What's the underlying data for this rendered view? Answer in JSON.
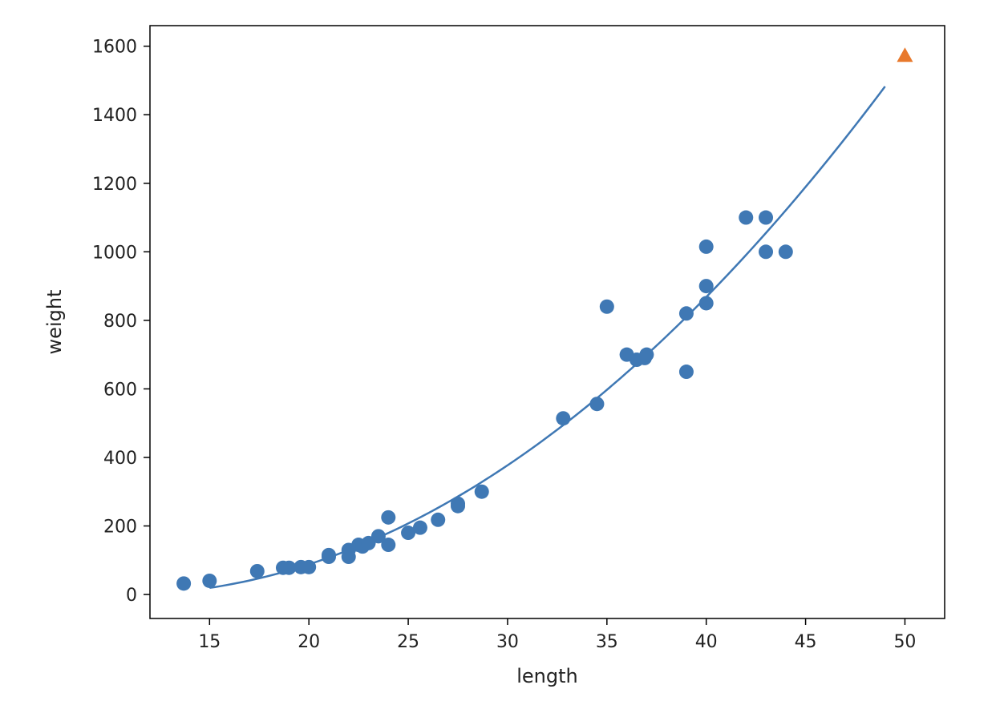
{
  "chart_data": {
    "type": "scatter",
    "xlabel": "length",
    "ylabel": "weight",
    "xlim": [
      12,
      52
    ],
    "ylim": [
      -70,
      1660
    ],
    "xticks": [
      15,
      20,
      25,
      30,
      35,
      40,
      45,
      50
    ],
    "yticks": [
      0,
      200,
      400,
      600,
      800,
      1000,
      1200,
      1400,
      1600
    ],
    "grid": false,
    "colors": {
      "data": "#3f78b4",
      "new_point": "#e8792c",
      "curve": "#3f78b4",
      "axes": "#000000"
    },
    "series": [
      {
        "marker": "circle",
        "points": [
          [
            13.7,
            32
          ],
          [
            15.0,
            40
          ],
          [
            17.4,
            68
          ],
          [
            18.7,
            78
          ],
          [
            19.0,
            78
          ],
          [
            19.6,
            80
          ],
          [
            20.0,
            80
          ],
          [
            21.0,
            115
          ],
          [
            21.0,
            110
          ],
          [
            22.0,
            130
          ],
          [
            22.0,
            110
          ],
          [
            22.5,
            145
          ],
          [
            22.7,
            140
          ],
          [
            23.0,
            150
          ],
          [
            23.5,
            170
          ],
          [
            24.0,
            225
          ],
          [
            24.0,
            145
          ],
          [
            25.0,
            180
          ],
          [
            25.6,
            195
          ],
          [
            26.5,
            218
          ],
          [
            27.5,
            265
          ],
          [
            27.5,
            258
          ],
          [
            28.7,
            300
          ],
          [
            32.8,
            514
          ],
          [
            34.5,
            556
          ],
          [
            35.0,
            840
          ],
          [
            36.0,
            700
          ],
          [
            36.5,
            685
          ],
          [
            36.9,
            690
          ],
          [
            37.0,
            700
          ],
          [
            39.0,
            650
          ],
          [
            39.0,
            820
          ],
          [
            40.0,
            850
          ],
          [
            40.0,
            900
          ],
          [
            40.0,
            1015
          ],
          [
            42.0,
            1100
          ],
          [
            43.0,
            1100
          ],
          [
            43.0,
            1000
          ],
          [
            44.0,
            1000
          ]
        ]
      },
      {
        "marker": "triangle",
        "points": [
          [
            50.0,
            1573
          ]
        ]
      },
      {
        "type": "line",
        "function": "poly2",
        "coef": [
          116.05,
          1.01,
          -21.6
        ],
        "x_range": [
          15,
          49
        ]
      }
    ]
  }
}
